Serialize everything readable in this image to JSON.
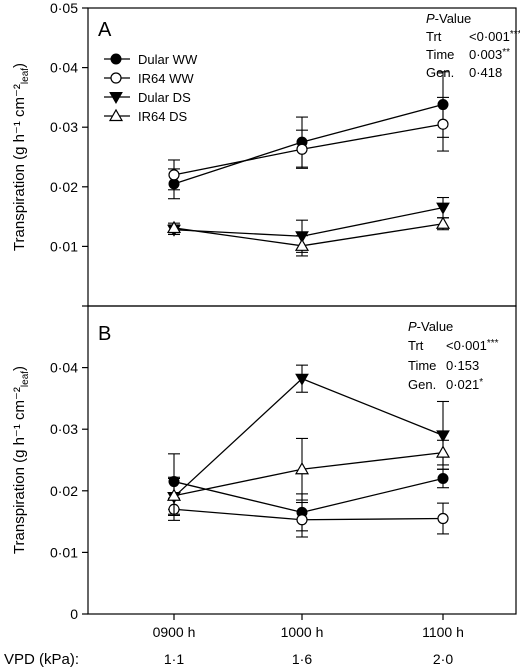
{
  "chart_data": [
    {
      "type": "line",
      "panel_label": "A",
      "ylabel": "Transpiration (g h⁻¹ cm⁻²",
      "ylabel_sub": "leaf",
      "ylabel_close": ")",
      "ylim": [
        0,
        0.05
      ],
      "yticks": [
        0,
        0.01,
        0.02,
        0.03,
        0.04,
        0.05
      ],
      "ytick_labels": [
        "",
        "0·01",
        "0·02",
        "0·03",
        "0·04",
        "0·05"
      ],
      "legend": "top-left",
      "series": [
        {
          "name": "Dular WW",
          "marker": "circle-filled",
          "values": [
            0.0205,
            0.0275,
            0.0338
          ],
          "err": [
            0.0025,
            0.0042,
            0.0055
          ]
        },
        {
          "name": "IR64 WW",
          "marker": "circle-open",
          "values": [
            0.022,
            0.0263,
            0.0305
          ],
          "err": [
            0.0025,
            0.0032,
            0.0045
          ]
        },
        {
          "name": "Dular DS",
          "marker": "triangle-down-filled",
          "values": [
            0.0128,
            0.0117,
            0.0165
          ],
          "err": [
            0.0008,
            0.0027,
            0.0017
          ]
        },
        {
          "name": "IR64 DS",
          "marker": "triangle-up-open",
          "values": [
            0.0131,
            0.0101,
            0.0138
          ],
          "err": [
            0.0008,
            0.0017,
            0.001
          ]
        }
      ],
      "stats": {
        "heading_italic": "P",
        "heading_rest": "-Value",
        "rows": [
          {
            "label": "Trt",
            "value": "<0·001",
            "sig": "***"
          },
          {
            "label": "Time",
            "value": "0·003",
            "sig": "**"
          },
          {
            "label": "Gen.",
            "value": "0·418",
            "sig": ""
          }
        ]
      }
    },
    {
      "type": "line",
      "panel_label": "B",
      "ylabel": "Transpiration (g h⁻¹ cm⁻²",
      "ylabel_sub": "leaf",
      "ylabel_close": ")",
      "ylim": [
        0,
        0.05
      ],
      "yticks": [
        0,
        0.01,
        0.02,
        0.03,
        0.04
      ],
      "ytick_labels": [
        "0",
        "0·01",
        "0·02",
        "0·03",
        "0·04"
      ],
      "categories": [
        "0900 h",
        "1000 h",
        "1100 h"
      ],
      "xlabel_prefix": "VPD (kPa):",
      "vpd": [
        "1·1",
        "1·6",
        "2·0"
      ],
      "series": [
        {
          "name": "Dular WW",
          "marker": "circle-filled",
          "values": [
            0.0215,
            0.0165,
            0.022
          ],
          "err": [
            0.0045,
            0.003,
            0.0015
          ]
        },
        {
          "name": "IR64 WW",
          "marker": "circle-open",
          "values": [
            0.017,
            0.0153,
            0.0155
          ],
          "err": [
            0.0018,
            0.0028,
            0.0025
          ]
        },
        {
          "name": "Dular DS",
          "marker": "triangle-down-filled",
          "values": [
            0.019,
            0.0382,
            0.029
          ],
          "err": [
            0.003,
            0.0022,
            0.0055
          ]
        },
        {
          "name": "IR64 DS",
          "marker": "triangle-up-open",
          "values": [
            0.0192,
            0.0235,
            0.0262
          ],
          "err": [
            0.003,
            0.005,
            0.002
          ]
        }
      ],
      "stats": {
        "heading_italic": "P",
        "heading_rest": "-Value",
        "rows": [
          {
            "label": "Trt",
            "value": "<0·001",
            "sig": "***"
          },
          {
            "label": "Time",
            "value": "0·153",
            "sig": ""
          },
          {
            "label": "Gen.",
            "value": "0·021",
            "sig": "*"
          }
        ]
      }
    }
  ]
}
